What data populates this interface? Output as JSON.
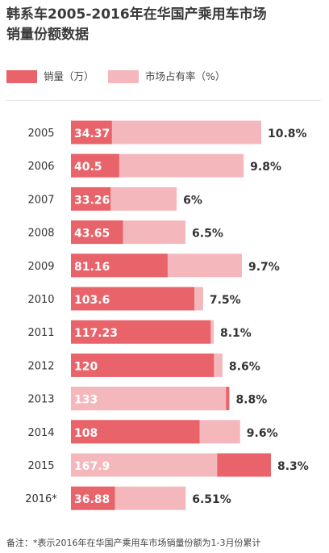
{
  "title_line1": "韩系车2005-2016年在华国产乘用车市场",
  "title_line2": "销量份额数据",
  "colors": {
    "sales": "#e8636a",
    "share": "#f4b8bc",
    "label_text": "#ffffff",
    "category_text": "#333333",
    "share_text": "#333333"
  },
  "legend": [
    {
      "name": "销量（万）",
      "color": "#e8636a"
    },
    {
      "name": "市场占有率（%）",
      "color": "#f4b8bc"
    }
  ],
  "footnote": "备注：*表示2016年在华国产乘用车市场销量份额为1-3月份累计",
  "chart_data": {
    "type": "bar",
    "orientation": "horizontal",
    "categories": [
      "2005",
      "2006",
      "2007",
      "2008",
      "2009",
      "2010",
      "2011",
      "2012",
      "2013",
      "2014",
      "2015",
      "2016*"
    ],
    "series": [
      {
        "name": "销量（万）",
        "values": [
          34.37,
          40.5,
          33.26,
          43.65,
          81.16,
          103.6,
          117.23,
          120,
          133,
          108,
          167.9,
          36.88
        ],
        "labels": [
          "34.37",
          "40.5",
          "33.26",
          "43.65",
          "81.16",
          "103.6",
          "117.23",
          "120",
          "133",
          "108",
          "167.9",
          "36.88"
        ]
      },
      {
        "name": "市场占有率（%）",
        "values": [
          10.8,
          9.8,
          6,
          6.5,
          9.7,
          7.5,
          8.1,
          8.6,
          8.8,
          9.6,
          8.3,
          6.51
        ],
        "labels": [
          "10.8%",
          "9.8%",
          "6%",
          "6.5%",
          "9.7%",
          "7.5%",
          "8.1%",
          "8.6%",
          "8.8%",
          "9.6%",
          "8.3%",
          "6.51%"
        ]
      }
    ],
    "sales_scale_max": 167.9,
    "share_scale_max": 10.8,
    "grid": false,
    "legend_position": "top-left"
  }
}
